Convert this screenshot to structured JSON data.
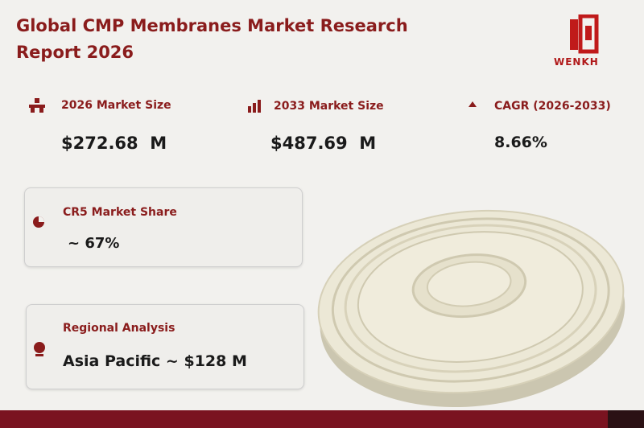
{
  "header": {
    "title": "Global CMP Membranes Market Research Report 2026",
    "logo": "WENKH"
  },
  "stats": [
    {
      "label": "2026 Market Size",
      "value": "$272.68  M"
    },
    {
      "label": "2033 Market Size",
      "value": "$487.69  M"
    },
    {
      "label": "CAGR (2026-2033)",
      "value": "8.66%"
    }
  ],
  "cards": [
    {
      "label": "CR5 Market Share",
      "value": "~ 67%"
    },
    {
      "label": "Regional Analysis",
      "value": "Asia Pacific ~ $128 M"
    }
  ]
}
